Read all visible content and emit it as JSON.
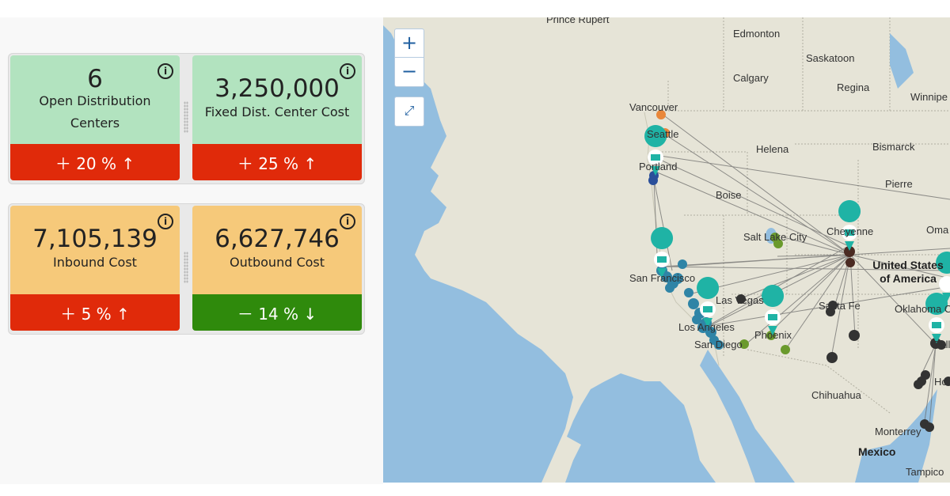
{
  "kpis": [
    {
      "value": "6",
      "label": "Open Distribution Centers",
      "change": "＋ 20 % ↑",
      "top_color": "#b2e3bf",
      "bottom_color": "#e02a0a"
    },
    {
      "value": "3,250,000",
      "label": "Fixed Dist. Center Cost",
      "change": "＋ 25 % ↑",
      "top_color": "#b2e3bf",
      "bottom_color": "#e02a0a"
    },
    {
      "value": "7,105,139",
      "label": "Inbound Cost",
      "change": "＋ 5 % ↑",
      "top_color": "#f6c97a",
      "bottom_color": "#e02a0a"
    },
    {
      "value": "6,627,746",
      "label": "Outbound Cost",
      "change": "－ 14 % ↓",
      "top_color": "#f6c97a",
      "bottom_color": "#2f8a0c"
    }
  ],
  "info_icon": "i",
  "map": {
    "zoom_in": "+",
    "zoom_out": "−",
    "fullscreen": "⤢",
    "cities": {
      "prince_rupert": "Prince Rupert",
      "edmonton": "Edmonton",
      "saskatoon": "Saskatoon",
      "calgary": "Calgary",
      "regina": "Regina",
      "winnipeg": "Winnipe",
      "vancouver": "Vancouver",
      "seattle": "Seattle",
      "helena": "Helena",
      "bismarck": "Bismarck",
      "portland": "Portland",
      "pierre": "Pierre",
      "boise": "Boise",
      "omaha": "Oma",
      "salt_lake": "Salt Lake City",
      "cheyenne": "Cheyenne",
      "usa": "United States of America",
      "san_francisco": "San Francisco",
      "las_vegas": "Las Vegas",
      "santa_fe": "Santa Fe",
      "oklahoma": "Oklahoma City",
      "los_angeles": "Los Angeles",
      "phoenix": "Phoenix",
      "dallas": "Dallas",
      "san_diego": "San Diego",
      "houston": "Ho",
      "chihuahua": "Chihuahua",
      "monterrey": "Monterrey",
      "mexico": "Mexico",
      "tampico": "Tampico"
    }
  },
  "colors": {
    "water": "#93bedf",
    "land": "#e6e4d7",
    "dc_marker": "#1fb3a5",
    "seattle_cluster": "#e9873a",
    "portland_cluster": "#2a4f9a",
    "california_cluster": "#2f84a6",
    "phoenix_cluster": "#6a9a2c",
    "denver_cluster": "#4a2a22",
    "texas_cluster": "#333333"
  }
}
